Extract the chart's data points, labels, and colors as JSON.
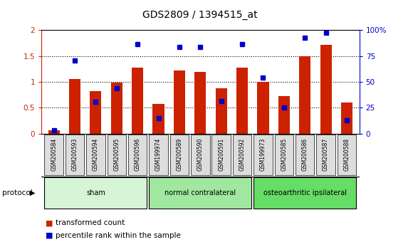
{
  "title": "GDS2809 / 1394515_at",
  "samples": [
    "GSM200584",
    "GSM200593",
    "GSM200594",
    "GSM200595",
    "GSM200596",
    "GSM199974",
    "GSM200589",
    "GSM200590",
    "GSM200591",
    "GSM200592",
    "GSM199973",
    "GSM200585",
    "GSM200586",
    "GSM200587",
    "GSM200588"
  ],
  "red_values": [
    0.07,
    1.05,
    0.82,
    0.99,
    1.27,
    0.57,
    1.22,
    1.2,
    0.87,
    1.28,
    1.0,
    0.72,
    1.5,
    1.72,
    0.6
  ],
  "blue_values": [
    0.07,
    1.42,
    0.62,
    0.88,
    1.73,
    0.3,
    1.67,
    1.67,
    0.63,
    1.73,
    1.08,
    0.5,
    1.85,
    1.95,
    0.25
  ],
  "groups": [
    {
      "label": "sham",
      "start": 0,
      "end": 4,
      "color": "#d5f5d5"
    },
    {
      "label": "normal contralateral",
      "start": 5,
      "end": 9,
      "color": "#a0e8a0"
    },
    {
      "label": "osteoarthritic ipsilateral",
      "start": 10,
      "end": 14,
      "color": "#66dd66"
    }
  ],
  "ylim_left": [
    0,
    2
  ],
  "ylim_right": [
    0,
    100
  ],
  "yticks_left": [
    0,
    0.5,
    1.0,
    1.5,
    2.0
  ],
  "yticks_right": [
    0,
    25,
    50,
    75,
    100
  ],
  "ytick_labels_right": [
    "0",
    "25",
    "50",
    "75",
    "100%"
  ],
  "bar_color": "#cc2200",
  "dot_color": "#0000cc",
  "background_color": "#ffffff",
  "plot_bg_color": "#ffffff",
  "tick_label_bg": "#dddddd",
  "legend_items": [
    "transformed count",
    "percentile rank within the sample"
  ],
  "protocol_label": "protocol",
  "group_bg_colors": [
    "#d5f5d5",
    "#a0e8a0",
    "#66dd66"
  ]
}
